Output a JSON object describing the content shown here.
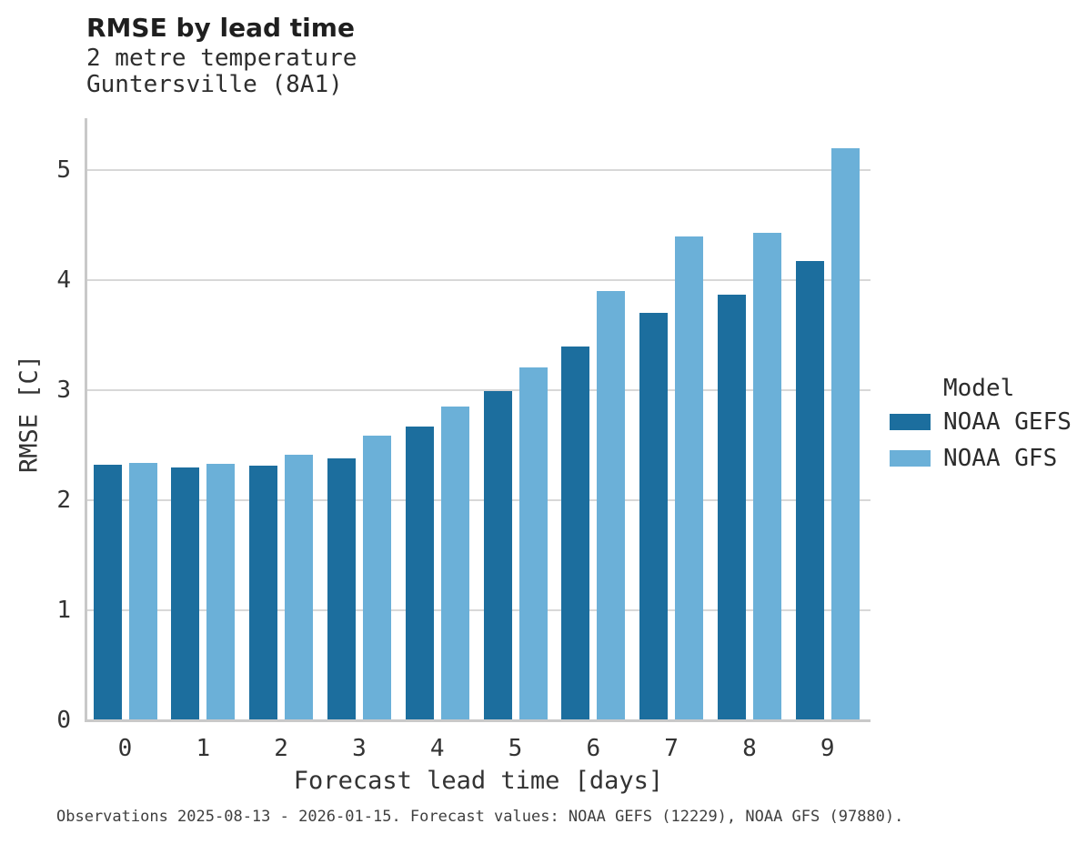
{
  "title": "RMSE by lead time",
  "subtitle_line1": "2 metre temperature",
  "subtitle_line2": "Guntersville (8A1)",
  "caption": "Observations 2025-08-13 - 2026-01-15. Forecast values: NOAA GEFS (12229), NOAA GFS (97880).",
  "colors": {
    "series_dark": "#1c6e9e",
    "series_light": "#6bb0d8",
    "gridline": "#d8d8d8",
    "axis_line": "#c9c9c9",
    "title_text": "#1f1f1f",
    "body_text": "#333333"
  },
  "chart_data": {
    "type": "bar",
    "title": "RMSE by lead time",
    "subtitle": [
      "2 metre temperature",
      "Guntersville (8A1)"
    ],
    "categories": [
      "0",
      "1",
      "2",
      "3",
      "4",
      "5",
      "6",
      "7",
      "8",
      "9"
    ],
    "series": [
      {
        "name": "NOAA GEFS",
        "color": "#1c6e9e",
        "values": [
          2.32,
          2.3,
          2.31,
          2.38,
          2.67,
          2.99,
          3.4,
          3.7,
          3.87,
          4.17
        ]
      },
      {
        "name": "NOAA GFS",
        "color": "#6bb0d8",
        "values": [
          2.34,
          2.33,
          2.41,
          2.59,
          2.85,
          3.21,
          3.9,
          4.4,
          4.43,
          5.2
        ]
      }
    ],
    "xlabel": "Forecast lead time [days]",
    "ylabel": "RMSE [C]",
    "ylim": [
      0,
      5.47
    ],
    "yticks": [
      0,
      1,
      2,
      3,
      4,
      5
    ],
    "grid": true,
    "legend_title": "Model",
    "legend_position": "right"
  }
}
